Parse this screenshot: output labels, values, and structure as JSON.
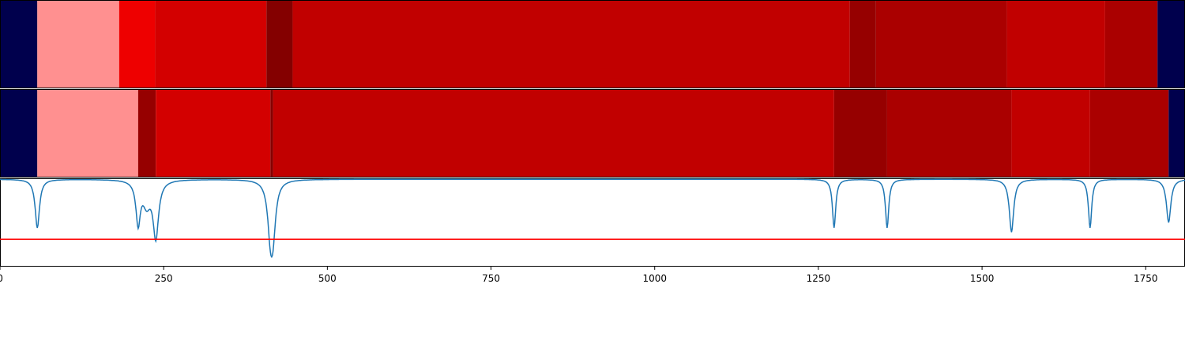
{
  "chart_data": {
    "type": "heatmap",
    "xlim": [
      0,
      1810
    ],
    "x_ticks": [
      0,
      250,
      500,
      750,
      1000,
      1250,
      1500,
      1750
    ],
    "x_tick_labels": [
      "0",
      "250",
      "500",
      "750",
      "1000",
      "1250",
      "1500",
      "1750"
    ],
    "title": "",
    "xlabel": "",
    "ylabel": "",
    "segment_tracks": [
      {
        "segments": [
          {
            "start": 0,
            "end": 57,
            "color": "#00004d"
          },
          {
            "start": 57,
            "end": 182,
            "color": "#ff9090"
          },
          {
            "start": 182,
            "end": 237,
            "color": "#ee0000"
          },
          {
            "start": 237,
            "end": 407,
            "color": "#d30000"
          },
          {
            "start": 407,
            "end": 447,
            "color": "#840000"
          },
          {
            "start": 447,
            "end": 1298,
            "color": "#c10000"
          },
          {
            "start": 1298,
            "end": 1338,
            "color": "#960000"
          },
          {
            "start": 1338,
            "end": 1538,
            "color": "#aa0000"
          },
          {
            "start": 1538,
            "end": 1688,
            "color": "#c10000"
          },
          {
            "start": 1688,
            "end": 1768,
            "color": "#aa0000"
          },
          {
            "start": 1768,
            "end": 1810,
            "color": "#00004d"
          }
        ]
      },
      {
        "segments": [
          {
            "start": 0,
            "end": 57,
            "color": "#00004d"
          },
          {
            "start": 57,
            "end": 211,
            "color": "#ff9090"
          },
          {
            "start": 211,
            "end": 238,
            "color": "#960000"
          },
          {
            "start": 238,
            "end": 413,
            "color": "#d30000"
          },
          {
            "start": 413,
            "end": 417,
            "color": "#840000"
          },
          {
            "start": 417,
            "end": 1274,
            "color": "#c10000"
          },
          {
            "start": 1274,
            "end": 1355,
            "color": "#960000"
          },
          {
            "start": 1355,
            "end": 1545,
            "color": "#aa0000"
          },
          {
            "start": 1545,
            "end": 1665,
            "color": "#c10000"
          },
          {
            "start": 1665,
            "end": 1785,
            "color": "#aa0000"
          },
          {
            "start": 1785,
            "end": 1810,
            "color": "#00004d"
          }
        ]
      }
    ],
    "signal_track": {
      "ylim": [
        0,
        1
      ],
      "threshold": 0.31,
      "threshold_color": "#ff0000",
      "line_color": "#1f77b4",
      "baseline": 0.99,
      "dips": [
        {
          "x": 57,
          "depth": 0.55,
          "width": 4
        },
        {
          "x": 211,
          "depth": 0.48,
          "width": 4
        },
        {
          "x": 224,
          "depth": 0.25,
          "width": 7
        },
        {
          "x": 238,
          "depth": 0.64,
          "width": 5
        },
        {
          "x": 413,
          "depth": 0.52,
          "width": 5
        },
        {
          "x": 417,
          "depth": 0.5,
          "width": 5
        },
        {
          "x": 1274,
          "depth": 0.55,
          "width": 3
        },
        {
          "x": 1355,
          "depth": 0.55,
          "width": 3
        },
        {
          "x": 1545,
          "depth": 0.6,
          "width": 4
        },
        {
          "x": 1665,
          "depth": 0.55,
          "width": 3
        },
        {
          "x": 1785,
          "depth": 0.49,
          "width": 4
        }
      ]
    }
  }
}
